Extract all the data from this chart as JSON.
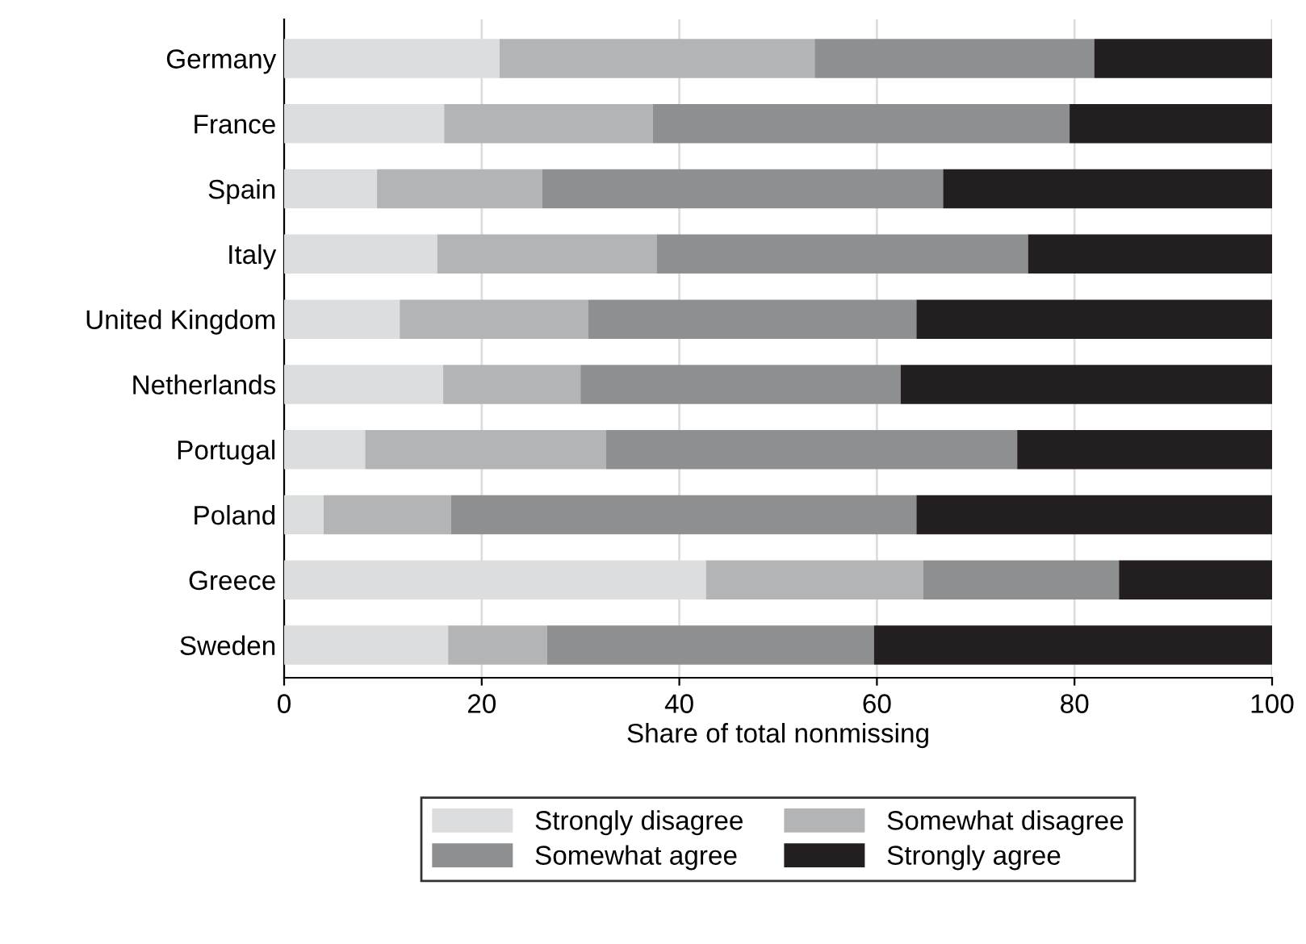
{
  "chart_data": {
    "type": "bar",
    "orientation": "horizontal",
    "stacked": true,
    "xlabel": "Share of total nonmissing",
    "categories": [
      "Germany",
      "France",
      "Spain",
      "Italy",
      "United Kingdom",
      "Netherlands",
      "Portugal",
      "Poland",
      "Greece",
      "Sweden"
    ],
    "series": [
      {
        "name": "Strongly disagree",
        "color": "#dcdddf",
        "values": [
          21.8,
          16.2,
          9.4,
          15.5,
          11.7,
          16.1,
          8.2,
          4.0,
          42.7,
          16.6
        ]
      },
      {
        "name": "Somewhat disagree",
        "color": "#b3b4b6",
        "values": [
          31.9,
          21.1,
          16.7,
          22.2,
          19.1,
          13.9,
          24.4,
          12.9,
          22.0,
          10.0
        ]
      },
      {
        "name": "Somewhat agree",
        "color": "#8e8f91",
        "values": [
          28.3,
          42.2,
          40.6,
          37.6,
          33.2,
          32.4,
          41.6,
          47.1,
          19.8,
          33.1
        ]
      },
      {
        "name": "Strongly agree",
        "color": "#231f20",
        "values": [
          18.0,
          20.5,
          33.3,
          24.7,
          36.0,
          37.6,
          25.8,
          36.0,
          15.5,
          40.3
        ]
      }
    ],
    "xlim": [
      0,
      100
    ],
    "xticks": [
      0,
      20,
      40,
      60,
      80,
      100
    ],
    "grid": "x",
    "legend": "bottom"
  }
}
